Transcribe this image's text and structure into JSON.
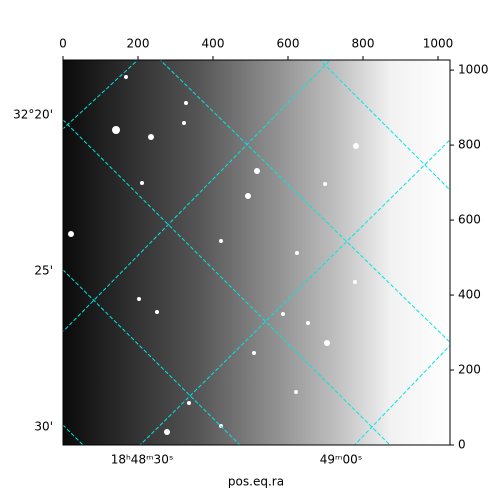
{
  "chart_data": {
    "type": "image",
    "xlabel": "pos.eq.ra",
    "xlim": [
      0,
      1032
    ],
    "xticks": [
      0,
      200,
      400,
      600,
      800,
      1000
    ],
    "ylim": [
      0,
      1027
    ],
    "yticks": [
      0,
      200,
      400,
      600,
      800,
      1000
    ],
    "world_yticklabels": [
      "32°20'",
      "25'",
      "30'"
    ],
    "world_xticklabels": [
      "18ʰ48ᵐ30ˢ",
      "49ᵐ00ˢ"
    ],
    "grid_color": "#00e5e5"
  }
}
